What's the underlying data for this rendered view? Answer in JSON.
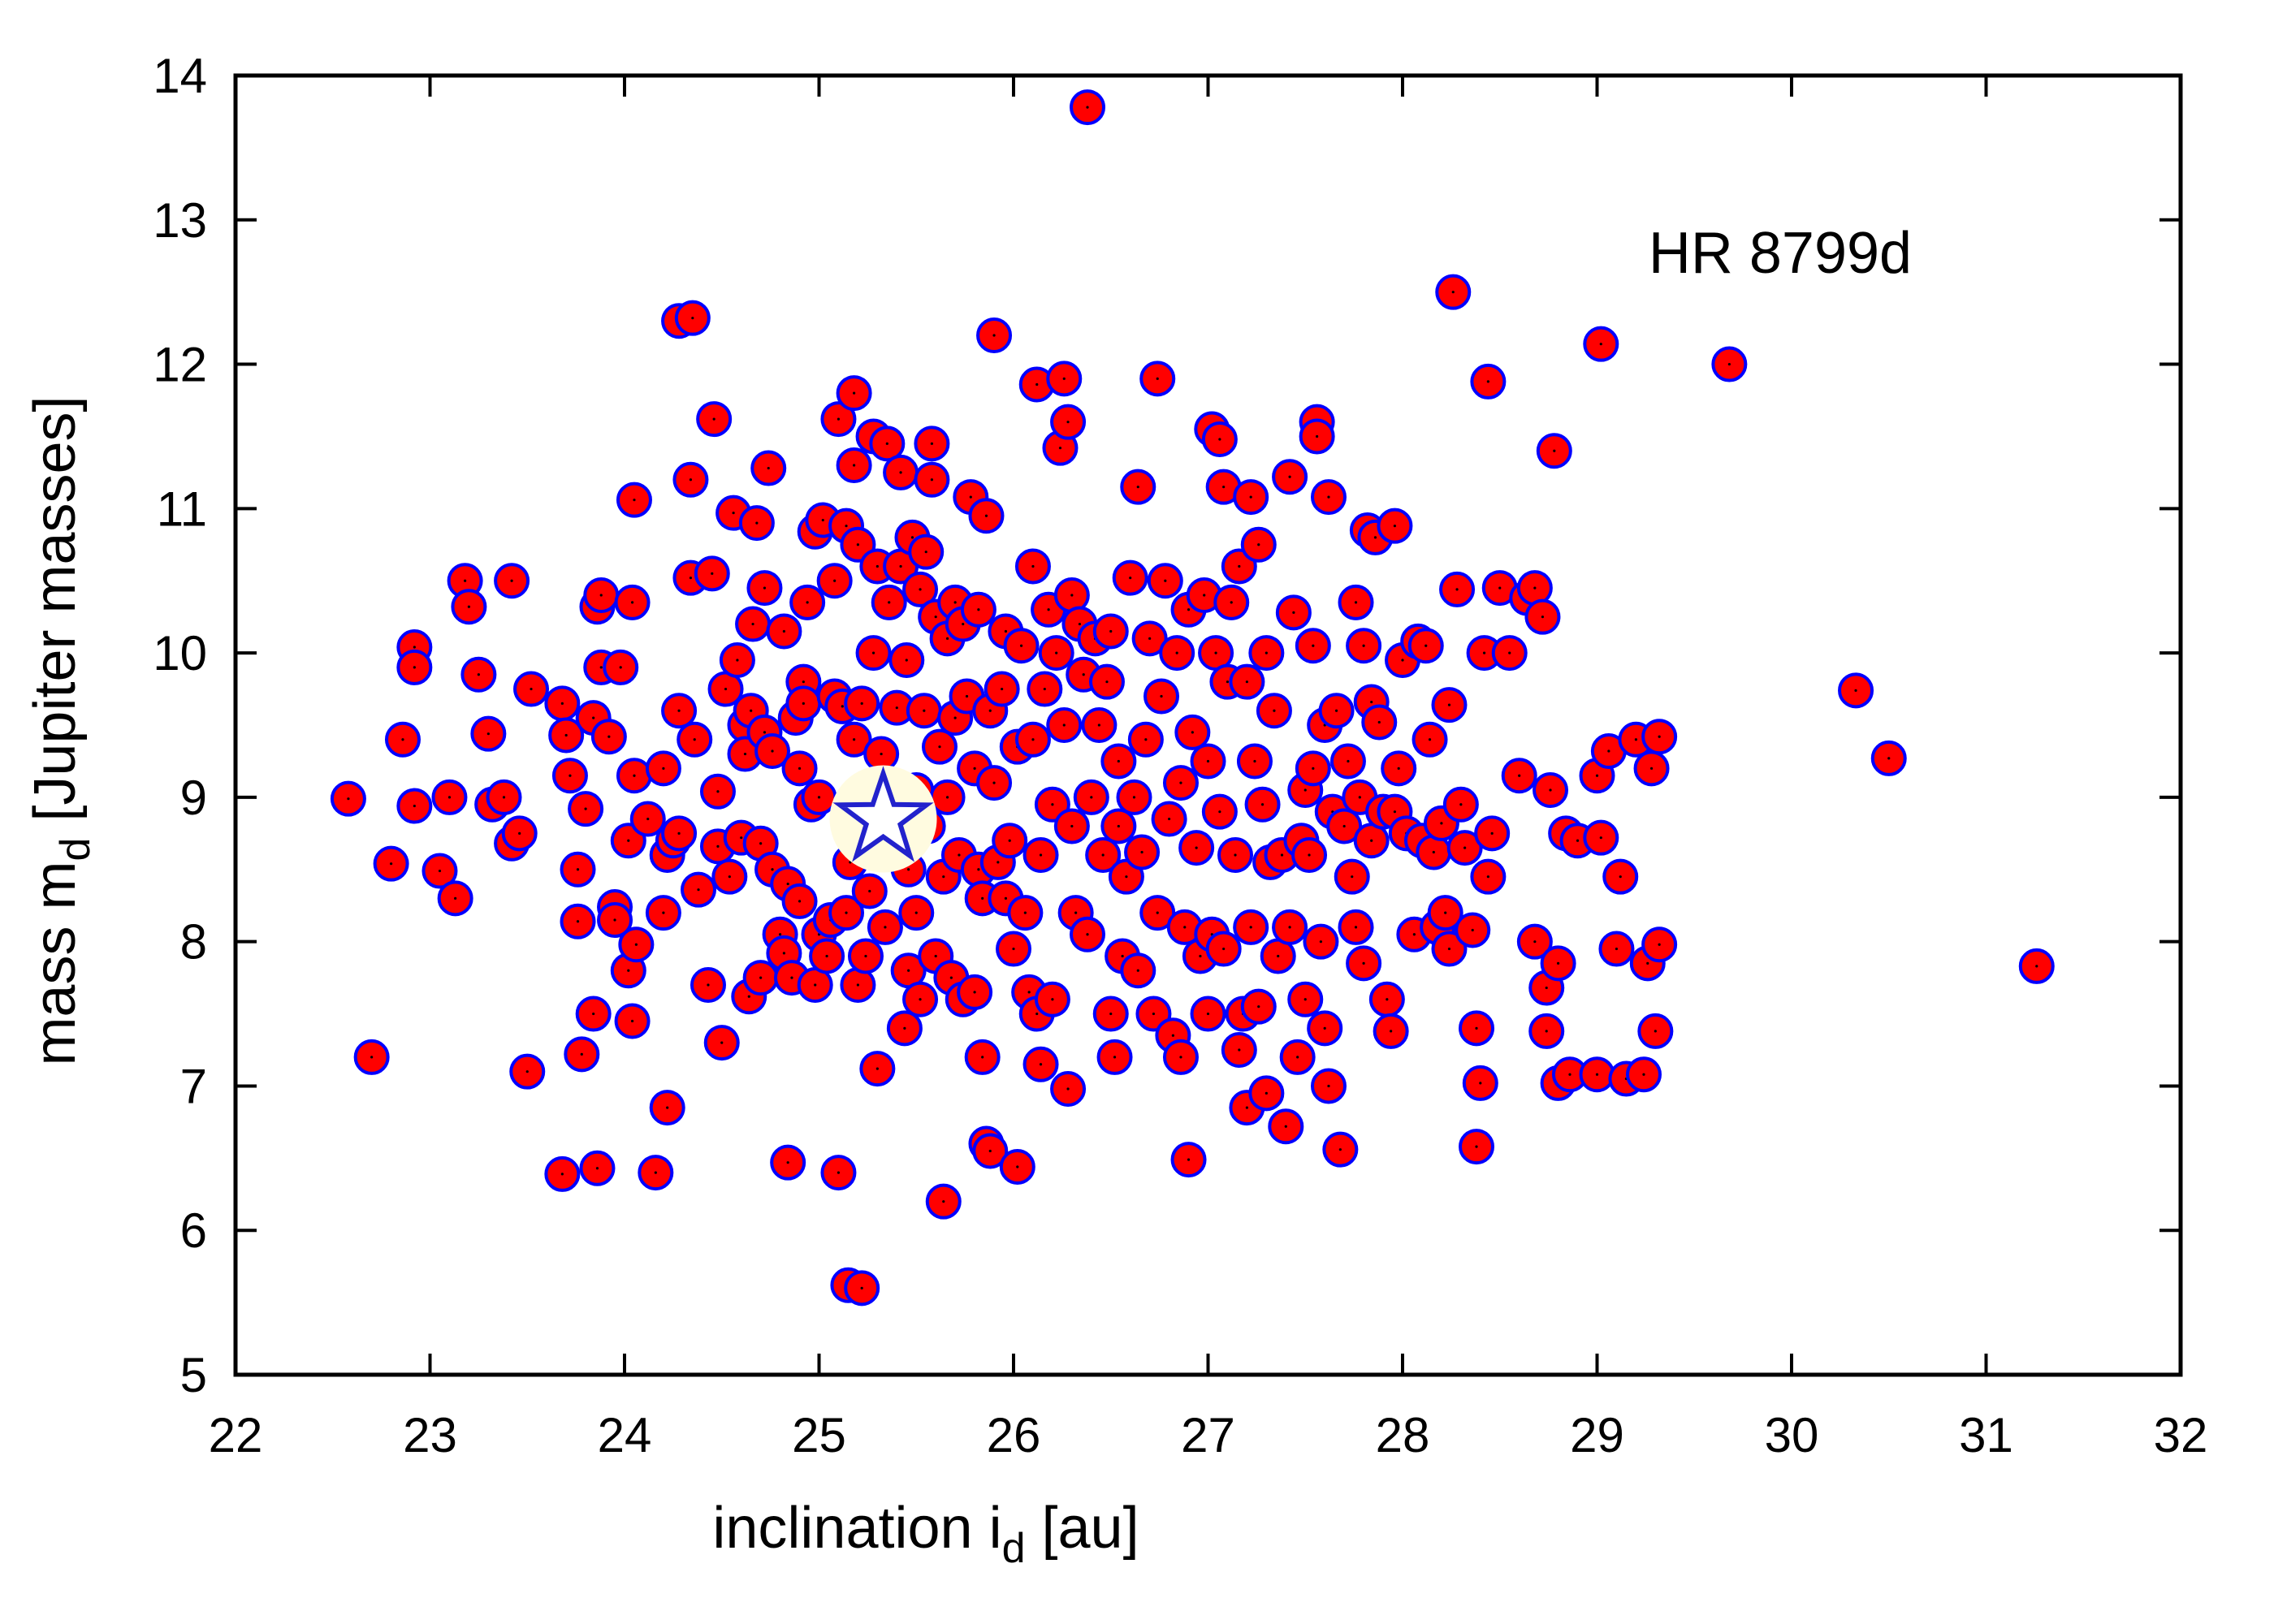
{
  "chart_data": {
    "type": "scatter",
    "title": "",
    "annotation": "HR 8799d",
    "xlabel": {
      "text": "inclination i",
      "sub": "d",
      "unit": " [au]"
    },
    "ylabel": {
      "text": "mass m",
      "sub": "d",
      "unit": " [Jupiter masses]"
    },
    "xlim": [
      22,
      32
    ],
    "ylim": [
      5,
      14
    ],
    "xticks": [
      "22",
      "23",
      "24",
      "25",
      "26",
      "27",
      "28",
      "29",
      "30",
      "31",
      "32"
    ],
    "yticks": [
      "5",
      "6",
      "7",
      "8",
      "9",
      "10",
      "11",
      "12",
      "13",
      "14"
    ],
    "grid": false,
    "legend": "none",
    "colors": {
      "marker_fill": "#ff0000",
      "marker_edge": "#0000ff",
      "center_dot": "#000000",
      "best_fit_fill": "#fffbe0",
      "best_fit_star": "#2222cc"
    },
    "best_fit": {
      "x": 25.33,
      "y": 8.85
    },
    "points": [
      [
        22.58,
        8.99
      ],
      [
        22.7,
        7.2
      ],
      [
        22.8,
        8.54
      ],
      [
        22.86,
        9.4
      ],
      [
        22.92,
        8.94
      ],
      [
        22.92,
        10.04
      ],
      [
        22.92,
        9.9
      ],
      [
        23.05,
        8.49
      ],
      [
        23.1,
        9.0
      ],
      [
        23.13,
        8.3
      ],
      [
        23.18,
        10.5
      ],
      [
        23.2,
        10.32
      ],
      [
        23.25,
        9.85
      ],
      [
        23.3,
        9.44
      ],
      [
        23.32,
        8.95
      ],
      [
        23.38,
        9.0
      ],
      [
        23.42,
        8.68
      ],
      [
        23.42,
        10.5
      ],
      [
        23.46,
        8.75
      ],
      [
        23.52,
        9.75
      ],
      [
        23.5,
        7.1
      ],
      [
        23.68,
        6.39
      ],
      [
        23.68,
        9.65
      ],
      [
        23.7,
        9.43
      ],
      [
        23.72,
        9.15
      ],
      [
        23.76,
        8.14
      ],
      [
        23.76,
        8.5
      ],
      [
        23.78,
        7.22
      ],
      [
        23.8,
        8.92
      ],
      [
        23.84,
        7.5
      ],
      [
        23.84,
        9.55
      ],
      [
        23.86,
        6.43
      ],
      [
        23.86,
        10.32
      ],
      [
        23.88,
        10.4
      ],
      [
        23.88,
        9.9
      ],
      [
        23.92,
        9.42
      ],
      [
        23.95,
        8.24
      ],
      [
        23.95,
        8.15
      ],
      [
        23.98,
        9.9
      ],
      [
        24.02,
        8.7
      ],
      [
        24.02,
        7.8
      ],
      [
        24.04,
        10.35
      ],
      [
        24.05,
        11.06
      ],
      [
        24.05,
        9.15
      ],
      [
        24.04,
        7.45
      ],
      [
        24.06,
        7.98
      ],
      [
        24.12,
        8.85
      ],
      [
        24.16,
        6.4
      ],
      [
        24.2,
        9.2
      ],
      [
        24.2,
        8.2
      ],
      [
        24.22,
        6.85
      ],
      [
        24.22,
        8.6
      ],
      [
        24.25,
        8.7
      ],
      [
        24.28,
        8.75
      ],
      [
        24.28,
        9.6
      ],
      [
        24.28,
        12.3
      ],
      [
        24.34,
        11.2
      ],
      [
        24.34,
        10.52
      ],
      [
        24.35,
        12.32
      ],
      [
        24.36,
        9.4
      ],
      [
        24.38,
        8.36
      ],
      [
        24.43,
        7.7
      ],
      [
        24.45,
        10.55
      ],
      [
        24.46,
        11.62
      ],
      [
        24.48,
        9.04
      ],
      [
        24.48,
        8.66
      ],
      [
        24.5,
        7.3
      ],
      [
        24.52,
        9.75
      ],
      [
        24.54,
        8.45
      ],
      [
        24.56,
        10.97
      ],
      [
        24.58,
        9.95
      ],
      [
        24.6,
        8.72
      ],
      [
        24.62,
        9.5
      ],
      [
        24.62,
        9.3
      ],
      [
        24.64,
        7.62
      ],
      [
        24.65,
        9.6
      ],
      [
        24.66,
        10.2
      ],
      [
        24.68,
        10.9
      ],
      [
        24.7,
        8.68
      ],
      [
        24.7,
        7.75
      ],
      [
        24.72,
        9.45
      ],
      [
        24.72,
        10.45
      ],
      [
        24.74,
        11.28
      ],
      [
        24.76,
        8.5
      ],
      [
        24.76,
        9.32
      ],
      [
        24.8,
        8.05
      ],
      [
        24.82,
        7.92
      ],
      [
        24.82,
        10.15
      ],
      [
        24.84,
        8.4
      ],
      [
        24.84,
        6.47
      ],
      [
        24.86,
        7.75
      ],
      [
        24.88,
        9.55
      ],
      [
        24.9,
        9.2
      ],
      [
        24.9,
        8.28
      ],
      [
        24.92,
        9.8
      ],
      [
        24.92,
        9.65
      ],
      [
        24.94,
        10.35
      ],
      [
        24.96,
        8.95
      ],
      [
        24.98,
        7.7
      ],
      [
        24.98,
        10.84
      ],
      [
        25.0,
        9.0
      ],
      [
        25.0,
        8.05
      ],
      [
        25.02,
        10.92
      ],
      [
        25.04,
        7.9
      ],
      [
        25.06,
        8.15
      ],
      [
        25.08,
        10.5
      ],
      [
        25.08,
        9.7
      ],
      [
        25.1,
        11.62
      ],
      [
        25.1,
        6.4
      ],
      [
        25.12,
        9.63
      ],
      [
        25.14,
        10.88
      ],
      [
        25.14,
        8.2
      ],
      [
        25.15,
        5.62
      ],
      [
        25.16,
        8.55
      ],
      [
        25.18,
        11.8
      ],
      [
        25.18,
        11.3
      ],
      [
        25.18,
        9.4
      ],
      [
        25.2,
        10.75
      ],
      [
        25.2,
        7.7
      ],
      [
        25.22,
        5.6
      ],
      [
        25.22,
        9.65
      ],
      [
        25.24,
        7.9
      ],
      [
        25.26,
        8.35
      ],
      [
        25.28,
        11.5
      ],
      [
        25.28,
        10.0
      ],
      [
        25.3,
        7.12
      ],
      [
        25.3,
        10.6
      ],
      [
        25.32,
        9.3
      ],
      [
        25.34,
        8.1
      ],
      [
        25.35,
        11.45
      ],
      [
        25.36,
        10.35
      ],
      [
        25.38,
        8.85
      ],
      [
        25.4,
        9.62
      ],
      [
        25.42,
        11.25
      ],
      [
        25.42,
        10.6
      ],
      [
        25.44,
        7.4
      ],
      [
        25.45,
        9.95
      ],
      [
        25.46,
        8.5
      ],
      [
        25.46,
        7.8
      ],
      [
        25.48,
        10.8
      ],
      [
        25.5,
        9.05
      ],
      [
        25.5,
        8.2
      ],
      [
        25.52,
        7.6
      ],
      [
        25.52,
        10.44
      ],
      [
        25.54,
        9.6
      ],
      [
        25.55,
        10.7
      ],
      [
        25.56,
        8.8
      ],
      [
        25.58,
        11.45
      ],
      [
        25.58,
        11.2
      ],
      [
        25.6,
        10.25
      ],
      [
        25.6,
        7.9
      ],
      [
        25.62,
        9.35
      ],
      [
        25.64,
        6.2
      ],
      [
        25.64,
        8.45
      ],
      [
        25.66,
        9.0
      ],
      [
        25.66,
        10.1
      ],
      [
        25.68,
        7.75
      ],
      [
        25.7,
        10.35
      ],
      [
        25.7,
        9.55
      ],
      [
        25.72,
        8.6
      ],
      [
        25.74,
        7.6
      ],
      [
        25.74,
        10.2
      ],
      [
        25.76,
        9.7
      ],
      [
        25.78,
        11.08
      ],
      [
        25.8,
        7.65
      ],
      [
        25.8,
        9.2
      ],
      [
        25.82,
        8.5
      ],
      [
        25.82,
        10.3
      ],
      [
        25.84,
        7.2
      ],
      [
        25.84,
        8.3
      ],
      [
        25.86,
        6.6
      ],
      [
        25.86,
        10.95
      ],
      [
        25.88,
        9.6
      ],
      [
        25.88,
        6.55
      ],
      [
        25.9,
        12.2
      ],
      [
        25.9,
        9.1
      ],
      [
        25.92,
        8.55
      ],
      [
        25.94,
        9.75
      ],
      [
        25.96,
        8.3
      ],
      [
        25.96,
        10.15
      ],
      [
        25.98,
        8.7
      ],
      [
        26.0,
        7.95
      ],
      [
        26.02,
        9.35
      ],
      [
        26.02,
        6.44
      ],
      [
        26.04,
        10.05
      ],
      [
        26.06,
        8.2
      ],
      [
        26.08,
        7.65
      ],
      [
        26.1,
        10.6
      ],
      [
        26.1,
        9.4
      ],
      [
        26.12,
        11.86
      ],
      [
        26.12,
        7.5
      ],
      [
        26.14,
        7.15
      ],
      [
        26.14,
        8.6
      ],
      [
        26.16,
        9.75
      ],
      [
        26.18,
        10.3
      ],
      [
        26.2,
        8.95
      ],
      [
        26.2,
        7.6
      ],
      [
        26.22,
        10.0
      ],
      [
        26.24,
        11.42
      ],
      [
        26.26,
        9.5
      ],
      [
        26.26,
        11.9
      ],
      [
        26.28,
        11.6
      ],
      [
        26.28,
        6.98
      ],
      [
        26.3,
        8.8
      ],
      [
        26.3,
        10.4
      ],
      [
        26.32,
        8.2
      ],
      [
        26.34,
        10.2
      ],
      [
        26.36,
        9.85
      ],
      [
        26.38,
        8.05
      ],
      [
        26.38,
        13.78
      ],
      [
        26.4,
        9.0
      ],
      [
        26.42,
        10.1
      ],
      [
        26.44,
        9.5
      ],
      [
        26.46,
        8.6
      ],
      [
        26.48,
        9.8
      ],
      [
        26.5,
        7.5
      ],
      [
        26.5,
        10.15
      ],
      [
        26.52,
        7.2
      ],
      [
        26.54,
        8.8
      ],
      [
        26.54,
        9.25
      ],
      [
        26.56,
        7.9
      ],
      [
        26.58,
        8.45
      ],
      [
        26.6,
        10.52
      ],
      [
        26.62,
        9.0
      ],
      [
        26.64,
        11.15
      ],
      [
        26.64,
        7.8
      ],
      [
        26.66,
        8.62
      ],
      [
        26.68,
        9.4
      ],
      [
        26.7,
        10.1
      ],
      [
        26.72,
        7.5
      ],
      [
        26.74,
        11.9
      ],
      [
        26.74,
        8.2
      ],
      [
        26.76,
        9.7
      ],
      [
        26.78,
        10.5
      ],
      [
        26.8,
        8.85
      ],
      [
        26.82,
        7.35
      ],
      [
        26.84,
        10.0
      ],
      [
        26.86,
        7.2
      ],
      [
        26.86,
        9.1
      ],
      [
        26.88,
        8.1
      ],
      [
        26.9,
        10.3
      ],
      [
        26.9,
        6.49
      ],
      [
        26.92,
        9.45
      ],
      [
        26.94,
        8.65
      ],
      [
        26.96,
        7.9
      ],
      [
        26.98,
        10.4
      ],
      [
        27.0,
        9.25
      ],
      [
        27.0,
        7.5
      ],
      [
        27.02,
        11.55
      ],
      [
        27.02,
        8.05
      ],
      [
        27.04,
        10.0
      ],
      [
        27.06,
        11.48
      ],
      [
        27.06,
        8.9
      ],
      [
        27.08,
        11.15
      ],
      [
        27.08,
        7.95
      ],
      [
        27.1,
        9.8
      ],
      [
        27.12,
        10.35
      ],
      [
        27.14,
        8.6
      ],
      [
        27.16,
        7.25
      ],
      [
        27.16,
        10.6
      ],
      [
        27.18,
        7.5
      ],
      [
        27.2,
        9.8
      ],
      [
        27.2,
        6.85
      ],
      [
        27.22,
        11.08
      ],
      [
        27.22,
        8.1
      ],
      [
        27.24,
        9.25
      ],
      [
        27.26,
        10.75
      ],
      [
        27.26,
        7.55
      ],
      [
        27.28,
        8.95
      ],
      [
        27.3,
        6.95
      ],
      [
        27.3,
        10.0
      ],
      [
        27.32,
        8.55
      ],
      [
        27.34,
        9.6
      ],
      [
        27.36,
        7.9
      ],
      [
        27.38,
        8.6
      ],
      [
        27.4,
        6.72
      ],
      [
        27.42,
        8.1
      ],
      [
        27.42,
        11.22
      ],
      [
        27.44,
        10.28
      ],
      [
        27.46,
        7.2
      ],
      [
        27.48,
        8.7
      ],
      [
        27.5,
        9.05
      ],
      [
        27.5,
        7.6
      ],
      [
        27.52,
        8.6
      ],
      [
        27.54,
        10.05
      ],
      [
        27.54,
        9.2
      ],
      [
        27.56,
        11.6
      ],
      [
        27.56,
        11.5
      ],
      [
        27.58,
        8.0
      ],
      [
        27.6,
        7.4
      ],
      [
        27.6,
        9.5
      ],
      [
        27.62,
        11.08
      ],
      [
        27.62,
        7.0
      ],
      [
        27.64,
        8.9
      ],
      [
        27.66,
        9.6
      ],
      [
        27.68,
        6.56
      ],
      [
        27.7,
        8.8
      ],
      [
        27.72,
        9.25
      ],
      [
        27.74,
        8.45
      ],
      [
        27.76,
        10.35
      ],
      [
        27.76,
        8.1
      ],
      [
        27.78,
        9.0
      ],
      [
        27.8,
        7.85
      ],
      [
        27.8,
        10.05
      ],
      [
        27.82,
        10.85
      ],
      [
        27.84,
        8.7
      ],
      [
        27.84,
        9.66
      ],
      [
        27.86,
        10.8
      ],
      [
        27.88,
        9.52
      ],
      [
        27.9,
        8.9
      ],
      [
        27.92,
        7.6
      ],
      [
        27.94,
        7.38
      ],
      [
        27.96,
        10.88
      ],
      [
        27.96,
        8.9
      ],
      [
        27.98,
        9.2
      ],
      [
        28.0,
        9.95
      ],
      [
        28.02,
        8.75
      ],
      [
        28.06,
        8.05
      ],
      [
        28.08,
        10.08
      ],
      [
        28.1,
        8.7
      ],
      [
        28.12,
        10.05
      ],
      [
        28.14,
        9.4
      ],
      [
        28.16,
        8.62
      ],
      [
        28.18,
        8.1
      ],
      [
        28.2,
        8.82
      ],
      [
        28.22,
        8.2
      ],
      [
        28.24,
        9.64
      ],
      [
        28.24,
        7.95
      ],
      [
        28.26,
        12.5
      ],
      [
        28.28,
        10.44
      ],
      [
        28.3,
        8.95
      ],
      [
        28.32,
        8.65
      ],
      [
        28.36,
        8.08
      ],
      [
        28.38,
        6.58
      ],
      [
        28.38,
        7.4
      ],
      [
        28.4,
        7.02
      ],
      [
        28.42,
        10.0
      ],
      [
        28.44,
        8.45
      ],
      [
        28.44,
        11.88
      ],
      [
        28.46,
        8.75
      ],
      [
        28.5,
        10.45
      ],
      [
        28.55,
        10.0
      ],
      [
        28.6,
        9.15
      ],
      [
        28.64,
        10.38
      ],
      [
        28.68,
        8.0
      ],
      [
        28.68,
        10.45
      ],
      [
        28.72,
        10.25
      ],
      [
        28.74,
        7.38
      ],
      [
        28.74,
        7.68
      ],
      [
        28.76,
        9.05
      ],
      [
        28.78,
        11.4
      ],
      [
        28.8,
        7.02
      ],
      [
        28.8,
        7.85
      ],
      [
        28.84,
        8.75
      ],
      [
        28.86,
        7.08
      ],
      [
        28.9,
        8.7
      ],
      [
        29.0,
        9.15
      ],
      [
        29.0,
        7.08
      ],
      [
        29.02,
        8.72
      ],
      [
        29.02,
        12.14
      ],
      [
        29.06,
        9.32
      ],
      [
        29.1,
        7.95
      ],
      [
        29.12,
        8.45
      ],
      [
        29.15,
        7.05
      ],
      [
        29.2,
        9.4
      ],
      [
        29.24,
        7.08
      ],
      [
        29.26,
        7.85
      ],
      [
        29.28,
        9.2
      ],
      [
        29.3,
        7.38
      ],
      [
        29.32,
        9.42
      ],
      [
        29.32,
        7.98
      ],
      [
        29.68,
        12.0
      ],
      [
        30.33,
        9.74
      ],
      [
        30.5,
        9.27
      ],
      [
        31.26,
        7.83
      ]
    ]
  }
}
